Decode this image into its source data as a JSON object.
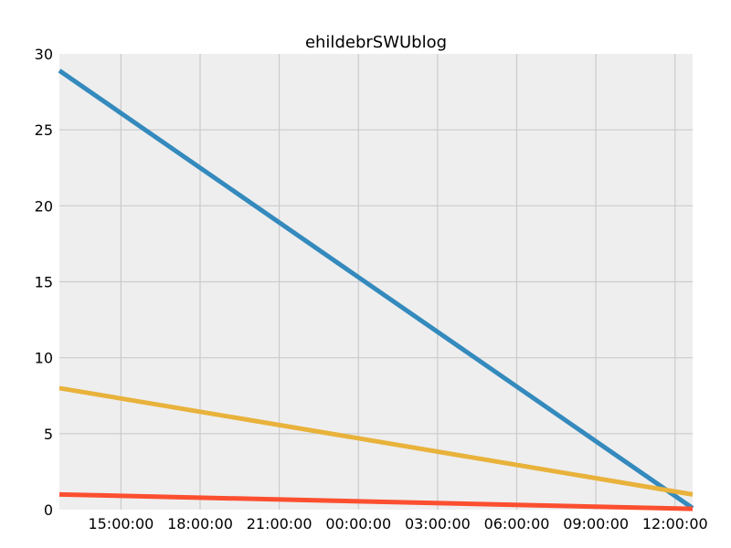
{
  "chart_data": {
    "type": "line",
    "title": "ehildebrSWUblog",
    "xlabel": "",
    "ylabel": "",
    "grid": true,
    "background_color": "#eeeeee",
    "grid_color": "#cbcbcb",
    "xlim": [
      "2016-01-01T12:40:00",
      "2016-01-02T12:40:00"
    ],
    "ylim": [
      0,
      30
    ],
    "x_ticks": [
      {
        "value": "2016-01-01T15:00:00",
        "label": "15:00:00"
      },
      {
        "value": "2016-01-01T18:00:00",
        "label": "18:00:00"
      },
      {
        "value": "2016-01-01T21:00:00",
        "label": "21:00:00"
      },
      {
        "value": "2016-01-02T00:00:00",
        "label": "00:00:00"
      },
      {
        "value": "2016-01-02T03:00:00",
        "label": "03:00:00"
      },
      {
        "value": "2016-01-02T06:00:00",
        "label": "06:00:00"
      },
      {
        "value": "2016-01-02T09:00:00",
        "label": "09:00:00"
      },
      {
        "value": "2016-01-02T12:00:00",
        "label": "12:00:00"
      }
    ],
    "y_ticks": [
      0,
      5,
      10,
      15,
      20,
      25,
      30
    ],
    "series": [
      {
        "color": "#348abd",
        "points": [
          {
            "x": "2016-01-01T12:40:00",
            "y": 28.9
          },
          {
            "x": "2016-01-02T12:40:00",
            "y": 0.1
          }
        ]
      },
      {
        "color": "#e8b23b",
        "points": [
          {
            "x": "2016-01-01T12:40:00",
            "y": 8.0
          },
          {
            "x": "2016-01-02T12:40:00",
            "y": 1.0
          }
        ]
      },
      {
        "color": "#fc4f30",
        "points": [
          {
            "x": "2016-01-01T12:40:00",
            "y": 1.0
          },
          {
            "x": "2016-01-02T12:40:00",
            "y": 0.05
          }
        ]
      }
    ]
  }
}
